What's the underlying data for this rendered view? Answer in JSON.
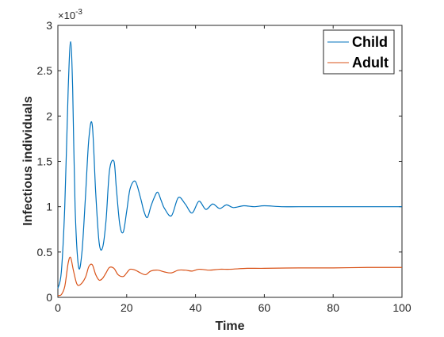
{
  "chart_data": {
    "type": "line",
    "title": "",
    "xlabel": "Time",
    "ylabel": "Infectious individuals",
    "y_exponent_label": "×10",
    "y_exponent_power": "-3",
    "xlim": [
      0,
      100
    ],
    "ylim": [
      0,
      3
    ],
    "x_ticks": [
      0,
      20,
      40,
      60,
      80,
      100
    ],
    "x_tick_labels": [
      "0",
      "20",
      "40",
      "60",
      "80",
      "100"
    ],
    "y_ticks": [
      0,
      0.5,
      1,
      1.5,
      2,
      2.5,
      3
    ],
    "y_tick_labels": [
      "0",
      "0.5",
      "1",
      "1.5",
      "2",
      "2.5",
      "3"
    ],
    "grid": false,
    "legend_position": "top-right",
    "series": [
      {
        "name": "Child",
        "color": "#0072BD",
        "x": [
          0,
          1,
          2,
          3,
          3.7,
          4.3,
          5,
          6,
          7,
          8,
          9,
          10,
          11,
          12,
          13,
          14,
          15,
          16.3,
          17,
          18,
          19,
          20,
          21,
          22.5,
          24,
          25,
          26,
          27,
          28,
          29,
          30,
          31,
          33,
          35,
          37,
          39,
          41,
          43,
          45,
          47,
          49,
          51,
          54,
          57,
          60,
          65,
          70,
          80,
          90,
          100
        ],
        "y": [
          0.1,
          0.28,
          1.0,
          2.3,
          2.82,
          2.3,
          1.0,
          0.34,
          0.5,
          1.1,
          1.75,
          1.9,
          1.15,
          0.6,
          0.55,
          0.85,
          1.4,
          1.5,
          1.2,
          0.8,
          0.72,
          0.95,
          1.2,
          1.28,
          1.1,
          0.95,
          0.88,
          1.0,
          1.1,
          1.16,
          1.07,
          0.98,
          0.9,
          1.1,
          1.03,
          0.93,
          1.06,
          0.97,
          1.03,
          0.98,
          1.02,
          0.99,
          1.01,
          1.0,
          1.01,
          1.0,
          1.0,
          1.0,
          1.0,
          1.0
        ]
      },
      {
        "name": "Adult",
        "color": "#D95319",
        "x": [
          0,
          1,
          2,
          3,
          3.7,
          4.5,
          5.5,
          6.5,
          8,
          9,
          10,
          11,
          12,
          13,
          14,
          15,
          16.3,
          17.5,
          19,
          20,
          21,
          22.5,
          24,
          25.5,
          27,
          29,
          31,
          33,
          35,
          37,
          39,
          41,
          44,
          47,
          50,
          55,
          60,
          70,
          80,
          90,
          100
        ],
        "y": [
          0.02,
          0.03,
          0.12,
          0.38,
          0.44,
          0.3,
          0.15,
          0.14,
          0.22,
          0.34,
          0.36,
          0.25,
          0.19,
          0.21,
          0.27,
          0.33,
          0.32,
          0.25,
          0.23,
          0.27,
          0.31,
          0.3,
          0.27,
          0.25,
          0.29,
          0.3,
          0.28,
          0.27,
          0.3,
          0.3,
          0.29,
          0.31,
          0.3,
          0.31,
          0.31,
          0.32,
          0.32,
          0.325,
          0.325,
          0.33,
          0.33
        ]
      }
    ]
  }
}
